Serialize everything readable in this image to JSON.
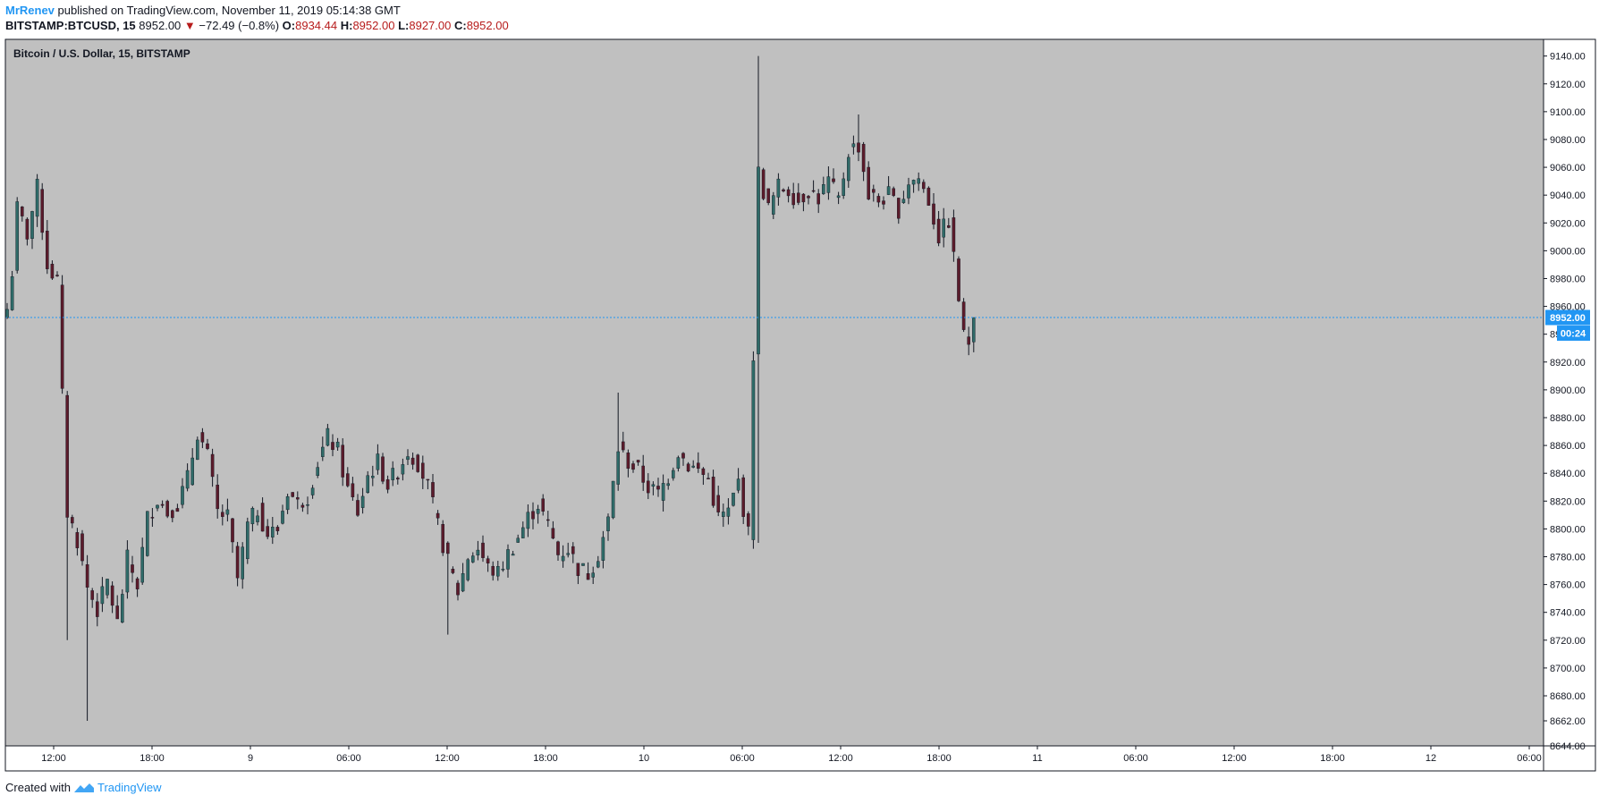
{
  "header": {
    "author": "MrRenev",
    "published_text": "published on TradingView.com, November 11, 2019 05:14:38 GMT",
    "symbol": "BITSTAMP:BTCUSD, 15",
    "last_price": "8952.00",
    "change_arrow": "▼",
    "change": "−72.49 (−0.8%)",
    "open_label": "O:",
    "open_value": "8934.44",
    "high_label": "H:",
    "high_value": "8952.00",
    "low_label": "L:",
    "low_value": "8927.00",
    "close_label": "C:",
    "close_value": "8952.00"
  },
  "footer": {
    "created_with": "Created with",
    "brand": "TradingView"
  },
  "colors": {
    "background": "#c0c0c0",
    "up": "#2f6b68",
    "down": "#5b1b2b",
    "accent": "#2196f3"
  },
  "chart_data": {
    "type": "candlestick",
    "title": "Bitcoin / U.S. Dollar, 15, BITSTAMP",
    "ylim": [
      8644,
      9152
    ],
    "y_ticks": [
      "9140.00",
      "9120.00",
      "9100.00",
      "9080.00",
      "9060.00",
      "9040.00",
      "9020.00",
      "9000.00",
      "8980.00",
      "8960.00",
      "8940.00",
      "8920.00",
      "8900.00",
      "8880.00",
      "8860.00",
      "8840.00",
      "8820.00",
      "8800.00",
      "8780.00",
      "8760.00",
      "8740.00",
      "8720.00",
      "8700.00",
      "8680.00",
      "8662.00",
      "8644.00"
    ],
    "x_ticks": [
      "12:00",
      "18:00",
      "9",
      "06:00",
      "12:00",
      "18:00",
      "10",
      "06:00",
      "12:00",
      "18:00",
      "11",
      "06:00",
      "12:00",
      "18:00",
      "12",
      "06:00"
    ],
    "last_price_label": "8952.00",
    "countdown_label": "00:24",
    "anchors": [
      [
        0,
        8958
      ],
      [
        1,
        8985
      ],
      [
        2,
        9030
      ],
      [
        4,
        9012
      ],
      [
        6,
        9045
      ],
      [
        8,
        8990
      ],
      [
        10,
        8978
      ],
      [
        12,
        8812
      ],
      [
        14,
        8792
      ],
      [
        16,
        8758
      ],
      [
        18,
        8742
      ],
      [
        20,
        8762
      ],
      [
        22,
        8732
      ],
      [
        24,
        8778
      ],
      [
        26,
        8760
      ],
      [
        28,
        8808
      ],
      [
        30,
        8822
      ],
      [
        32,
        8812
      ],
      [
        34,
        8818
      ],
      [
        36,
        8836
      ],
      [
        38,
        8870
      ],
      [
        40,
        8852
      ],
      [
        42,
        8812
      ],
      [
        44,
        8808
      ],
      [
        46,
        8764
      ],
      [
        48,
        8802
      ],
      [
        50,
        8814
      ],
      [
        52,
        8796
      ],
      [
        54,
        8800
      ],
      [
        56,
        8828
      ],
      [
        58,
        8818
      ],
      [
        60,
        8824
      ],
      [
        62,
        8848
      ],
      [
        64,
        8866
      ],
      [
        66,
        8856
      ],
      [
        68,
        8828
      ],
      [
        70,
        8812
      ],
      [
        72,
        8838
      ],
      [
        74,
        8848
      ],
      [
        76,
        8832
      ],
      [
        78,
        8842
      ],
      [
        80,
        8856
      ],
      [
        82,
        8848
      ],
      [
        84,
        8830
      ],
      [
        86,
        8802
      ],
      [
        88,
        8776
      ],
      [
        90,
        8755
      ],
      [
        92,
        8780
      ],
      [
        94,
        8786
      ],
      [
        96,
        8772
      ],
      [
        98,
        8768
      ],
      [
        100,
        8782
      ],
      [
        102,
        8794
      ],
      [
        104,
        8808
      ],
      [
        106,
        8818
      ],
      [
        108,
        8802
      ],
      [
        110,
        8782
      ],
      [
        112,
        8786
      ],
      [
        114,
        8772
      ],
      [
        116,
        8768
      ],
      [
        118,
        8782
      ],
      [
        120,
        8806
      ],
      [
        122,
        8858
      ],
      [
        124,
        8848
      ],
      [
        126,
        8842
      ],
      [
        128,
        8830
      ],
      [
        130,
        8825
      ],
      [
        132,
        8838
      ],
      [
        134,
        8856
      ],
      [
        136,
        8846
      ],
      [
        138,
        8842
      ],
      [
        140,
        8836
      ],
      [
        142,
        8808
      ],
      [
        144,
        8812
      ],
      [
        146,
        8834
      ],
      [
        148,
        8796
      ],
      [
        150,
        9056
      ],
      [
        152,
        9030
      ],
      [
        154,
        9046
      ],
      [
        156,
        9044
      ],
      [
        158,
        9036
      ],
      [
        160,
        9044
      ],
      [
        162,
        9038
      ],
      [
        164,
        9050
      ],
      [
        166,
        9036
      ],
      [
        168,
        9072
      ],
      [
        170,
        9076
      ],
      [
        172,
        9040
      ],
      [
        174,
        9036
      ],
      [
        176,
        9040
      ],
      [
        178,
        9030
      ],
      [
        180,
        9050
      ],
      [
        182,
        9052
      ],
      [
        184,
        9036
      ],
      [
        186,
        9010
      ],
      [
        188,
        9022
      ],
      [
        190,
        8966
      ],
      [
        191,
        8938
      ],
      [
        192,
        8935
      ],
      [
        193,
        8952
      ]
    ]
  }
}
